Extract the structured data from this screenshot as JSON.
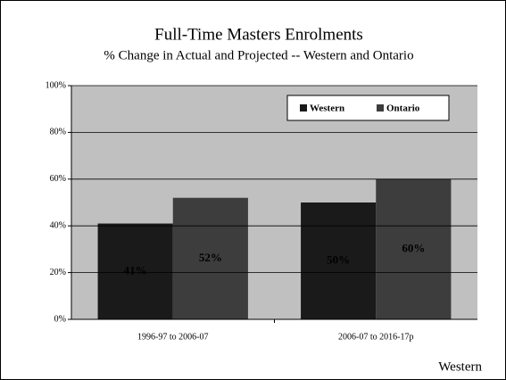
{
  "chart_data": {
    "type": "bar",
    "title": "Full-Time Masters Enrolments",
    "subtitle": "% Change in Actual and Projected  -- Western and Ontario",
    "categories": [
      "1996-97 to 2006-07",
      "2006-07 to 2016-17p"
    ],
    "series": [
      {
        "name": "Western",
        "color": "#1a1a1a",
        "values": [
          41,
          50
        ],
        "value_labels": [
          "41%",
          "50%"
        ]
      },
      {
        "name": "Ontario",
        "color": "#3d3d3d",
        "values": [
          52,
          60
        ],
        "value_labels": [
          "52%",
          "60%"
        ]
      }
    ],
    "ylim": [
      0,
      100
    ],
    "yticks": [
      {
        "value": 0,
        "label": "0%"
      },
      {
        "value": 20,
        "label": "20%"
      },
      {
        "value": 40,
        "label": "40%"
      },
      {
        "value": 60,
        "label": "60%"
      },
      {
        "value": 80,
        "label": "80%"
      },
      {
        "value": 100,
        "label": "100%"
      }
    ],
    "grid": true,
    "legend": "top-right",
    "logo_text": "Western"
  }
}
